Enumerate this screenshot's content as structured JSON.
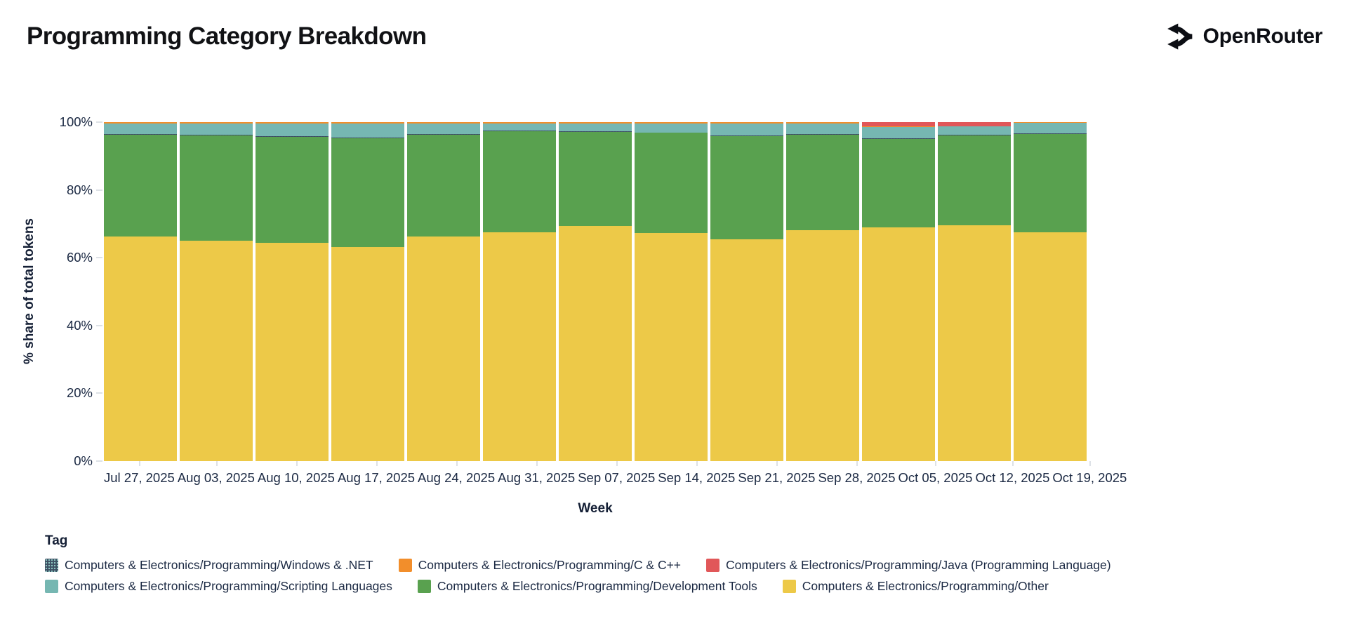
{
  "header": {
    "title": "Programming Category Breakdown",
    "brand": "OpenRouter"
  },
  "chart_data": {
    "type": "bar",
    "stacked": true,
    "title": "Programming Category Breakdown",
    "xlabel": "Week",
    "ylabel": "% share of total tokens",
    "ylim": [
      0,
      100
    ],
    "y_ticks": [
      0,
      20,
      40,
      60,
      80,
      100
    ],
    "y_tick_suffix": "%",
    "grid": false,
    "legend_position": "bottom",
    "x": [
      "Jul 27, 2025",
      "Aug 03, 2025",
      "Aug 10, 2025",
      "Aug 17, 2025",
      "Aug 24, 2025",
      "Aug 31, 2025",
      "Sep 07, 2025",
      "Sep 14, 2025",
      "Sep 21, 2025",
      "Sep 28, 2025",
      "Oct 05, 2025",
      "Oct 12, 2025",
      "Oct 19, 2025"
    ],
    "series": [
      {
        "key": "other",
        "name": "Computers & Electronics/Programming/Other",
        "color": "#edc948",
        "pattern": false,
        "values": [
          66.3,
          65.0,
          64.4,
          63.1,
          66.2,
          67.4,
          69.3,
          67.3,
          65.5,
          68.2,
          69.0,
          69.5,
          67.5
        ]
      },
      {
        "key": "dev_tools",
        "name": "Computers & Electronics/Programming/Development Tools",
        "color": "#59a14f",
        "pattern": false,
        "values": [
          30.0,
          31.0,
          31.3,
          32.1,
          30.0,
          29.9,
          27.9,
          29.5,
          30.4,
          28.0,
          26.0,
          26.5,
          29.0
        ]
      },
      {
        "key": "windows_net",
        "name": "Computers & Electronics/Programming/Windows & .NET",
        "color": "#3d4f63",
        "pattern": true,
        "values": [
          0.2,
          0.2,
          0.2,
          0.2,
          0.2,
          0.2,
          0.2,
          0.2,
          0.2,
          0.2,
          0.2,
          0.2,
          0.2
        ]
      },
      {
        "key": "scripting",
        "name": "Computers & Electronics/Programming/Scripting Languages",
        "color": "#76b7b2",
        "pattern": false,
        "values": [
          3.1,
          3.4,
          3.7,
          4.2,
          3.2,
          2.1,
          2.2,
          2.6,
          3.5,
          3.2,
          3.4,
          2.5,
          3.1
        ]
      },
      {
        "key": "c_cpp",
        "name": "Computers & Electronics/Programming/C & C++",
        "color": "#f28e2b",
        "pattern": false,
        "values": [
          0.4,
          0.4,
          0.4,
          0.4,
          0.4,
          0.4,
          0.4,
          0.4,
          0.4,
          0.4,
          0.1,
          0.1,
          0.2
        ]
      },
      {
        "key": "java",
        "name": "Computers & Electronics/Programming/Java (Programming Language)",
        "color": "#e15759",
        "pattern": false,
        "values": [
          0.0,
          0.0,
          0.0,
          0.0,
          0.0,
          0.0,
          0.0,
          0.0,
          0.0,
          0.0,
          1.3,
          1.2,
          0.0
        ]
      }
    ],
    "legend": {
      "title": "Tag",
      "rows": [
        [
          "windows_net",
          "c_cpp",
          "java"
        ],
        [
          "scripting",
          "dev_tools",
          "other"
        ]
      ]
    }
  }
}
